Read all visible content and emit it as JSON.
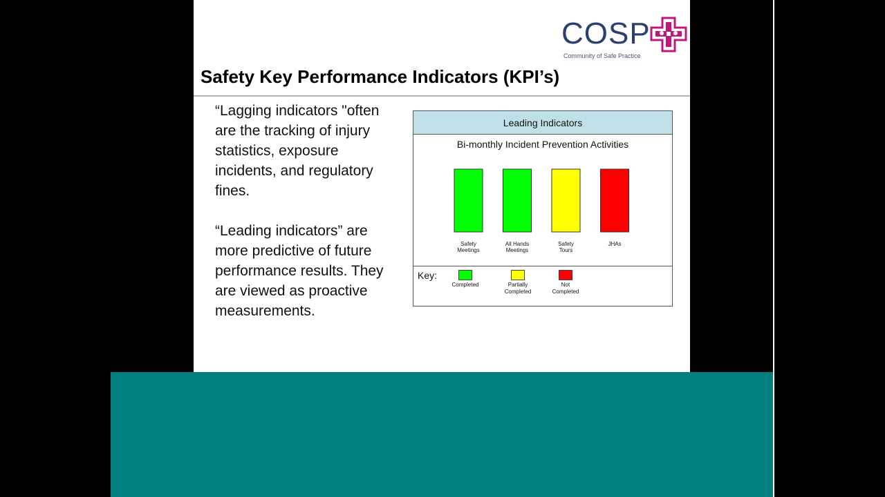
{
  "logo": {
    "name": "COSP",
    "subtitle": "Community of Safe Practice",
    "text_color": "#2c3e72",
    "mark_color": "#c0187a"
  },
  "slide": {
    "title": "Safety Key Performance Indicators (KPI’s)",
    "paragraph1": "“Lagging indicators \"often are the tracking of injury statistics, exposure incidents, and regulatory fines.",
    "paragraph2": " “Leading indicators” are more predictive of future performance results.  They are viewed as proactive measurements."
  },
  "chart_data": {
    "type": "bar",
    "title": "Leading Indicators",
    "subtitle": "Bi-monthly Incident Prevention Activities",
    "categories": [
      "Safety\nMeetings",
      "All Hands\nMeetings",
      "Safety\nTours",
      "JHAs"
    ],
    "status": [
      "Completed",
      "Completed",
      "Partially Completed",
      "Not Completed"
    ],
    "colors": [
      "#00ff00",
      "#00ff00",
      "#ffff00",
      "#ff0000"
    ],
    "key_label": "Key:",
    "key": [
      {
        "label": "Completed",
        "color": "#00ff00"
      },
      {
        "label": "Partially\nCompleted",
        "color": "#ffff00"
      },
      {
        "label": "Not\nCompleted",
        "color": "#ff0000"
      }
    ]
  },
  "colors": {
    "teal_band": "#017f7f",
    "chart_header": "#bfe0e6"
  }
}
